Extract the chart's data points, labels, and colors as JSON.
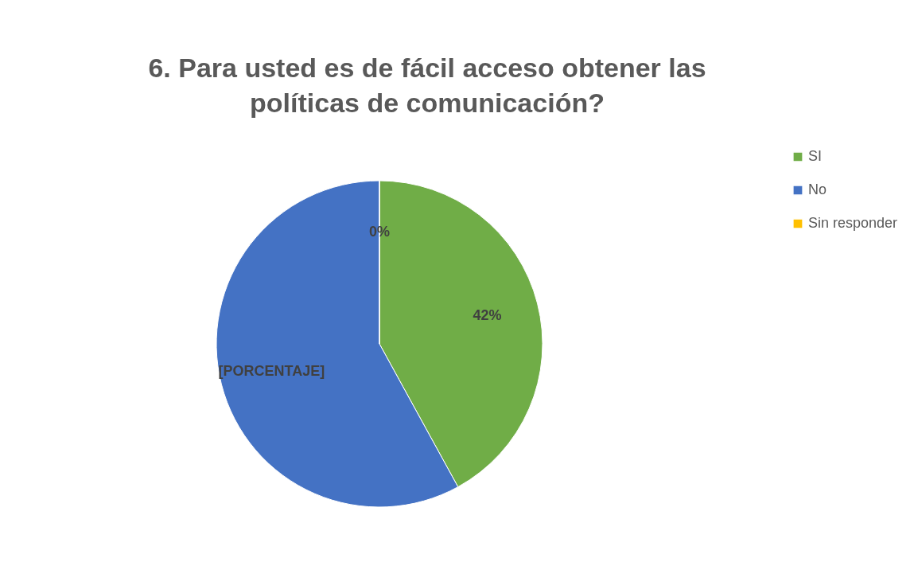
{
  "chart_data": {
    "type": "pie",
    "title": "6. Para usted es de fácil acceso obtener  las políticas de comunicación?",
    "categories": [
      "SI",
      "No",
      "Sin responder"
    ],
    "values": [
      42,
      58,
      0
    ],
    "colors": [
      "#70ad47",
      "#4472c4",
      "#ffc000"
    ],
    "value_labels": [
      "42%",
      "[PORCENTAJE]",
      "0%"
    ],
    "legend": "right"
  }
}
